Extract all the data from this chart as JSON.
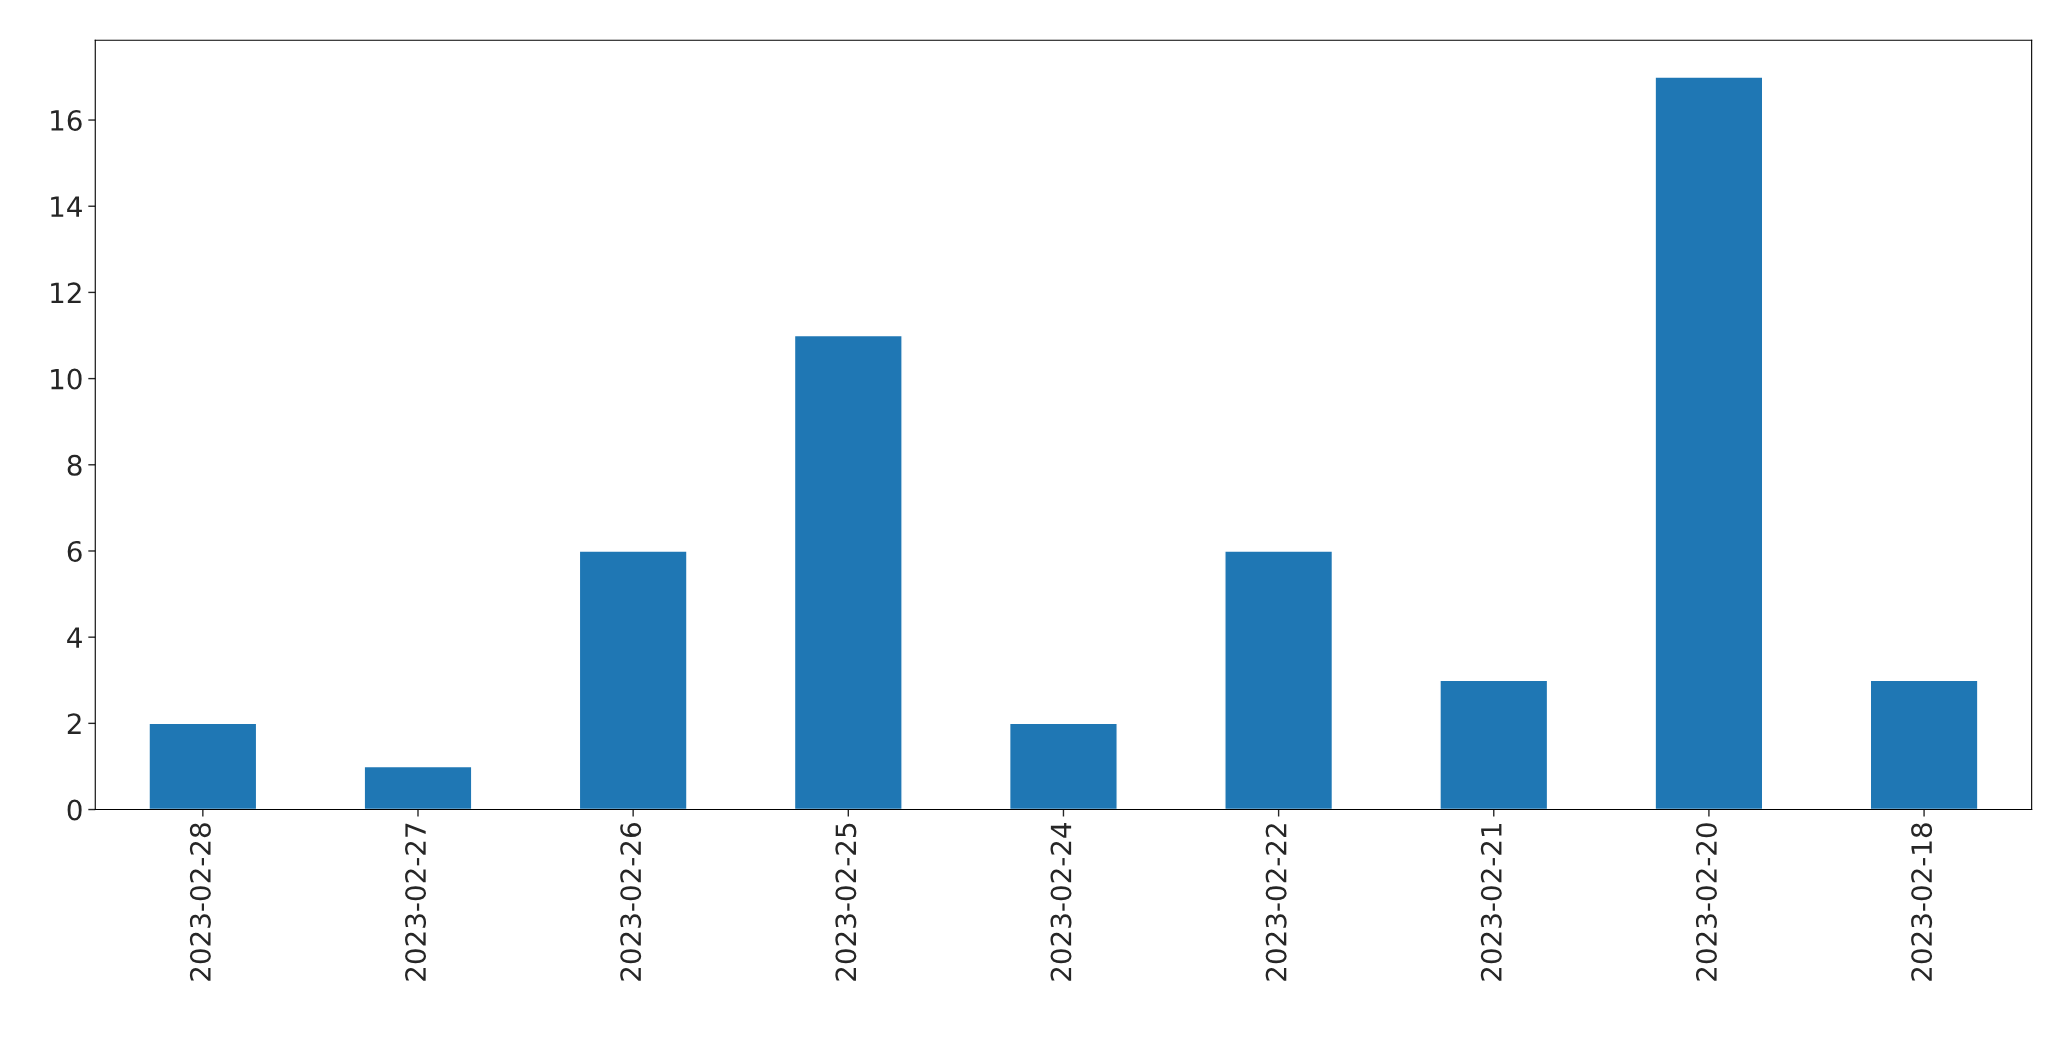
{
  "chart_data": {
    "type": "bar",
    "categories": [
      "2023-02-28",
      "2023-02-27",
      "2023-02-26",
      "2023-02-25",
      "2023-02-24",
      "2023-02-22",
      "2023-02-21",
      "2023-02-20",
      "2023-02-18"
    ],
    "values": [
      2,
      1,
      6,
      11,
      2,
      6,
      3,
      17,
      3
    ],
    "color": "#1f77b4",
    "ylim": [
      0,
      17.85
    ],
    "yticks": [
      0,
      2,
      4,
      6,
      8,
      10,
      12,
      14,
      16
    ],
    "grid": false,
    "legend": false
  }
}
